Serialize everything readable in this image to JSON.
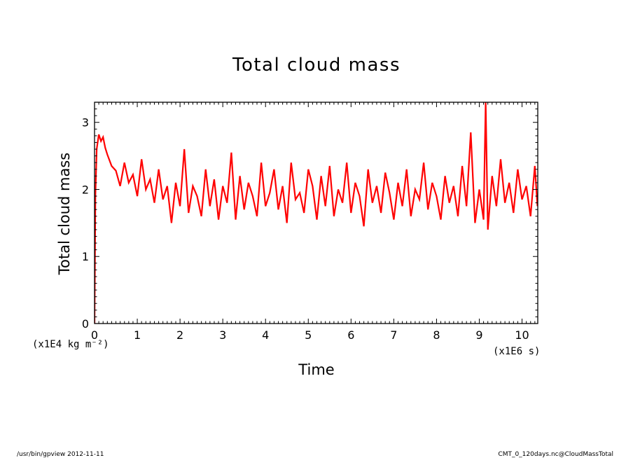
{
  "chart_data": {
    "type": "line",
    "title": "Total cloud mass",
    "xlabel": "Time",
    "ylabel": "Total cloud mass",
    "x_unit": "(x1E6 s)",
    "y_unit": "(x1E4 kg m⁻²)",
    "xlim": [
      0,
      10.368
    ],
    "ylim": [
      0,
      3.3
    ],
    "xticks": [
      "0",
      "1",
      "2",
      "3",
      "4",
      "5",
      "6",
      "7",
      "8",
      "9",
      "10"
    ],
    "yticks": [
      "0",
      "1",
      "2",
      "3"
    ],
    "grid": false,
    "series": [
      {
        "color": "#ff0000",
        "x": [
          0,
          0.02,
          0.05,
          0.1,
          0.15,
          0.2,
          0.25,
          0.3,
          0.4,
          0.5,
          0.6,
          0.7,
          0.8,
          0.9,
          1.0,
          1.1,
          1.2,
          1.3,
          1.4,
          1.5,
          1.6,
          1.7,
          1.8,
          1.9,
          2.0,
          2.1,
          2.2,
          2.3,
          2.4,
          2.5,
          2.6,
          2.7,
          2.8,
          2.9,
          3.0,
          3.1,
          3.2,
          3.3,
          3.4,
          3.5,
          3.6,
          3.7,
          3.8,
          3.9,
          4.0,
          4.1,
          4.2,
          4.3,
          4.4,
          4.5,
          4.6,
          4.7,
          4.8,
          4.9,
          5.0,
          5.1,
          5.2,
          5.3,
          5.4,
          5.5,
          5.6,
          5.7,
          5.8,
          5.9,
          6.0,
          6.1,
          6.2,
          6.3,
          6.4,
          6.5,
          6.6,
          6.7,
          6.8,
          6.9,
          7.0,
          7.1,
          7.2,
          7.3,
          7.4,
          7.5,
          7.6,
          7.7,
          7.8,
          7.9,
          8.0,
          8.1,
          8.2,
          8.3,
          8.4,
          8.5,
          8.6,
          8.7,
          8.8,
          8.9,
          9.0,
          9.1,
          9.15,
          9.2,
          9.3,
          9.4,
          9.5,
          9.6,
          9.7,
          9.8,
          9.9,
          10.0,
          10.1,
          10.2,
          10.3,
          10.36
        ],
        "y": [
          0.0,
          1.9,
          2.6,
          2.82,
          2.72,
          2.78,
          2.62,
          2.52,
          2.35,
          2.28,
          2.05,
          2.4,
          2.1,
          2.22,
          1.9,
          2.45,
          2.0,
          2.15,
          1.8,
          2.3,
          1.85,
          2.05,
          1.5,
          2.1,
          1.75,
          2.6,
          1.65,
          2.05,
          1.9,
          1.6,
          2.3,
          1.75,
          2.15,
          1.55,
          2.05,
          1.8,
          2.55,
          1.55,
          2.2,
          1.7,
          2.1,
          1.9,
          1.6,
          2.4,
          1.75,
          1.95,
          2.3,
          1.7,
          2.05,
          1.5,
          2.4,
          1.85,
          1.95,
          1.65,
          2.3,
          2.05,
          1.55,
          2.2,
          1.75,
          2.35,
          1.6,
          2.0,
          1.8,
          2.4,
          1.65,
          2.1,
          1.9,
          1.45,
          2.3,
          1.8,
          2.05,
          1.65,
          2.25,
          1.95,
          1.55,
          2.1,
          1.75,
          2.3,
          1.6,
          2.0,
          1.85,
          2.4,
          1.7,
          2.1,
          1.9,
          1.55,
          2.2,
          1.8,
          2.05,
          1.6,
          2.35,
          1.75,
          2.85,
          1.5,
          2.0,
          1.55,
          3.3,
          1.4,
          2.2,
          1.75,
          2.45,
          1.8,
          2.1,
          1.65,
          2.3,
          1.85,
          2.05,
          1.6,
          2.35,
          1.75
        ]
      }
    ]
  },
  "footer": {
    "left": "/usr/bin/gpview   2012-11-11",
    "right": "CMT_0_120days.nc@CloudMassTotal"
  }
}
